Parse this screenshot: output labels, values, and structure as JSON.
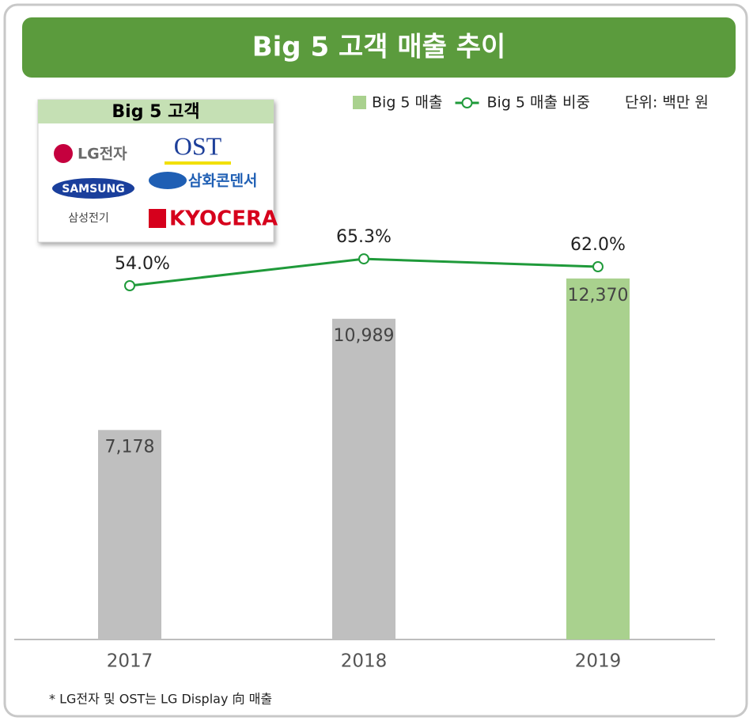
{
  "chart_data": {
    "type": "bar",
    "title": "Big 5 고객 매출 추이",
    "unit_note": "단위: 백만 원",
    "footnote": "* LG전자 및 OST는 LG Display 向 매출",
    "customer_box": {
      "title": "Big 5 고객",
      "logos": [
        "LG전자",
        "OST",
        "SAMSUNG",
        "삼화콘덴서",
        "삼성전기",
        "KYOCERA"
      ]
    },
    "categories": [
      "2017",
      "2018",
      "2019"
    ],
    "series": [
      {
        "name": "Big 5 매출",
        "type": "bar",
        "color": "#a9d18e",
        "point_colors": [
          "#bfbfbf",
          "#bfbfbf",
          "#a9d18e"
        ],
        "values": [
          7178,
          10989,
          12370
        ],
        "value_labels": [
          "7,178",
          "10,989",
          "12,370"
        ]
      },
      {
        "name": "Big 5 매출 비중",
        "type": "line",
        "axis": "y2",
        "color": "#1f9a3a",
        "values": [
          54.0,
          65.3,
          62.0
        ],
        "value_labels": [
          "54.0%",
          "65.3%",
          "62.0%"
        ]
      }
    ],
    "ylim": [
      0,
      19200
    ],
    "y2lim": [
      -95,
      141
    ]
  }
}
